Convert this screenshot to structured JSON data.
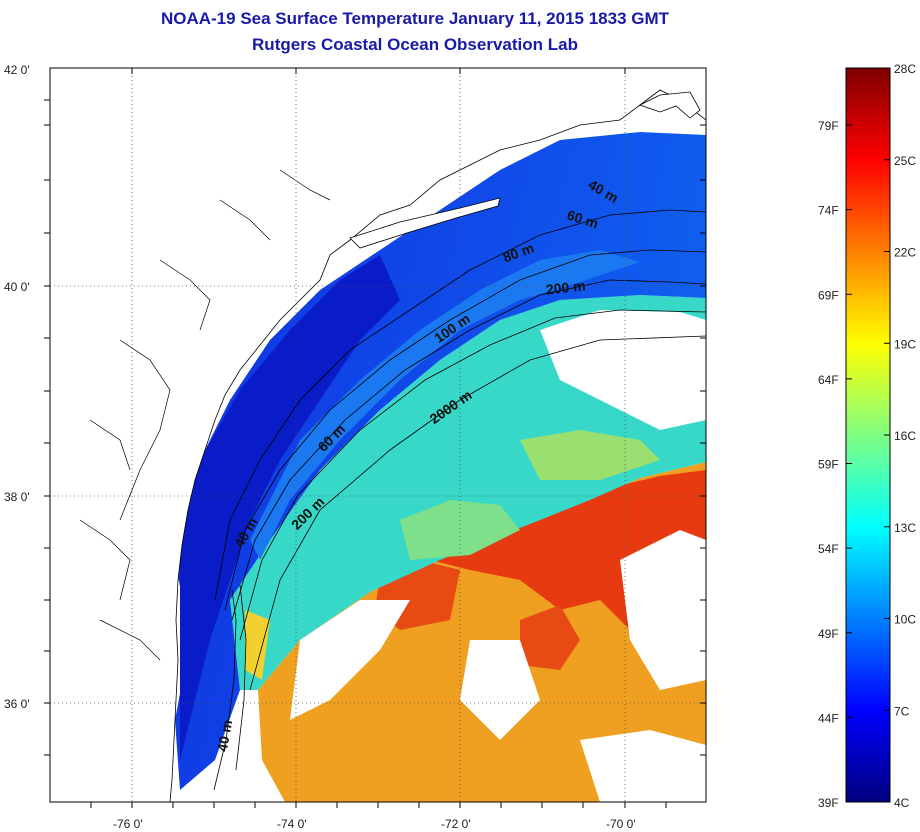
{
  "header": {
    "title": "NOAA-19 Sea Surface Temperature January 11, 2015 1833 GMT",
    "subtitle": "Rutgers Coastal Ocean Observation Lab"
  },
  "map": {
    "lat_labels": [
      "42 0'",
      "40 0'",
      "38 0'",
      "36 0'"
    ],
    "lon_labels": [
      "-76 0'",
      "-74 0'",
      "-72 0'",
      "-70 0'"
    ],
    "grid": "dotted",
    "depth_labels": [
      {
        "text": "40 m",
        "where": "off Cape Cod"
      },
      {
        "text": "60 m",
        "where": "off Cape Cod"
      },
      {
        "text": "80 m",
        "where": "south of New England"
      },
      {
        "text": "200 m",
        "where": "shelf break off New England"
      },
      {
        "text": "100 m",
        "where": "off New York Bight"
      },
      {
        "text": "2000 m",
        "where": "slope off New Jersey"
      },
      {
        "text": "60 m",
        "where": "off Delaware"
      },
      {
        "text": "200 m",
        "where": "shelf break off Virginia"
      },
      {
        "text": "40 m",
        "where": "off Virginia"
      },
      {
        "text": "40 m",
        "where": "off North Carolina"
      }
    ]
  },
  "colorbar": {
    "left_labels": [
      "79F",
      "74F",
      "69F",
      "64F",
      "59F",
      "54F",
      "49F",
      "44F",
      "39F"
    ],
    "right_labels": [
      "28C",
      "25C",
      "22C",
      "19C",
      "16C",
      "13C",
      "10C",
      "7C",
      "4C"
    ],
    "colors": [
      "#00007f",
      "#0000ff",
      "#0080ff",
      "#00ffff",
      "#80ff80",
      "#ffff00",
      "#ff8000",
      "#ff0000",
      "#7f0000"
    ]
  }
}
